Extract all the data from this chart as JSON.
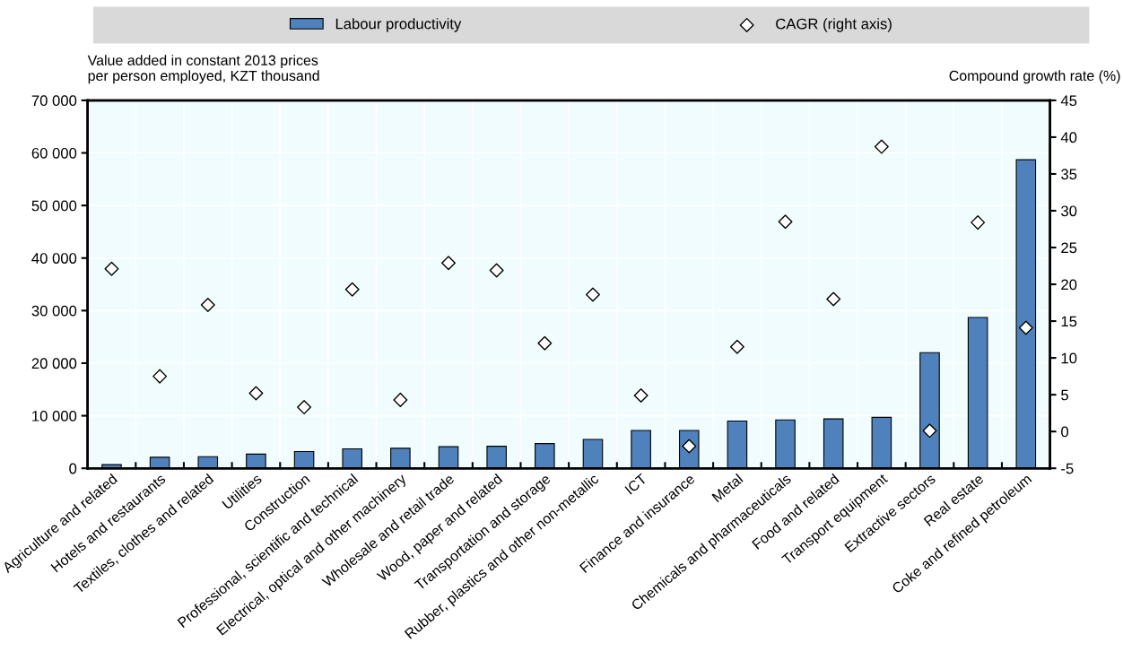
{
  "chart_data": {
    "type": "bar",
    "categories": [
      "Agriculture and related",
      "Hotels and restaurants",
      "Textiles, clothes and related",
      "Utilities",
      "Construction",
      "Professional, scientific and technical",
      "Electrical, optical and other machinery",
      "Wholesale and retail trade",
      "Wood, paper and related",
      "Transportation and storage",
      "Rubber, plastics and other non-metallic",
      "ICT",
      "Finance and insurance",
      "Metal",
      "Chemicals and pharmaceuticals",
      "Food and related",
      "Transport equipment",
      "Extractive sectors",
      "Real estate",
      "Coke and refined petroleum"
    ],
    "ylabel": "Value added in constant 2013 prices\nper person employed, KZT thousand",
    "y2label": "Compound growth rate (%)",
    "series": [
      {
        "name": "Labour productivity",
        "color": "#4f81bd",
        "values": [
          700,
          2100,
          2200,
          2700,
          3200,
          3700,
          3800,
          4100,
          4200,
          4700,
          5500,
          7200,
          7200,
          9000,
          9200,
          9400,
          9700,
          22000,
          28700,
          58700
        ]
      },
      {
        "name": "CAGR (right axis)",
        "type": "scatter",
        "axis": "y2",
        "color": "#ffffff",
        "marker": "diamond",
        "values": [
          22.1,
          7.5,
          17.2,
          5.2,
          3.3,
          19.3,
          4.3,
          22.9,
          21.9,
          12.0,
          18.6,
          4.9,
          -2.0,
          11.5,
          28.5,
          18.0,
          38.7,
          0.1,
          28.4,
          14.1
        ]
      }
    ],
    "ylim": [
      0,
      70000
    ],
    "yticks": [
      {
        "value": 0,
        "label": "0"
      },
      {
        "value": 10000,
        "label": "10 000"
      },
      {
        "value": 20000,
        "label": "20 000"
      },
      {
        "value": 30000,
        "label": "30 000"
      },
      {
        "value": 40000,
        "label": "40 000"
      },
      {
        "value": 50000,
        "label": "50 000"
      },
      {
        "value": 60000,
        "label": "60 000"
      },
      {
        "value": 70000,
        "label": "70 000"
      }
    ],
    "y2lim": [
      -5,
      45
    ],
    "y2ticks": [
      -5,
      0,
      5,
      10,
      15,
      20,
      25,
      30,
      35,
      40,
      45
    ],
    "grid": true,
    "legend": "top"
  }
}
